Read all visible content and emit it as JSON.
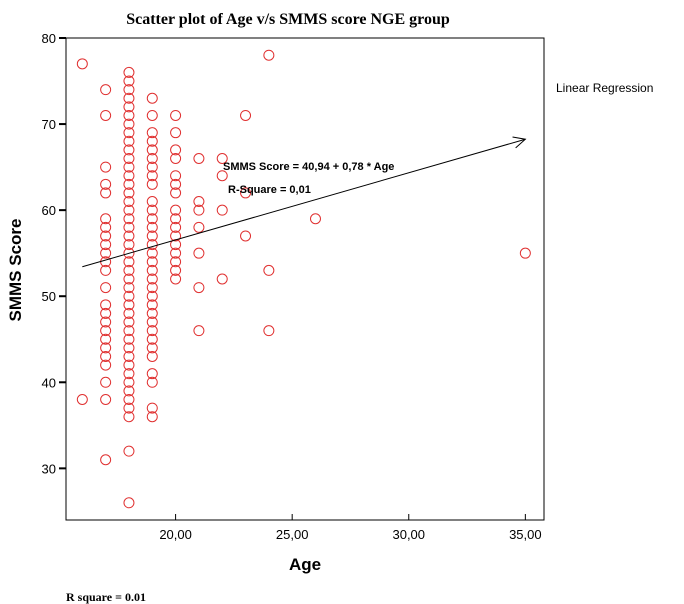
{
  "chart_data": {
    "type": "scatter",
    "title": "Scatter plot of Age v/s SMMS score NGE group",
    "xlabel": "Age",
    "ylabel": "SMMS Score",
    "xlim": [
      15.3,
      35.8
    ],
    "ylim": [
      24,
      80
    ],
    "x_ticks": [
      {
        "value": 20,
        "label": "20,00"
      },
      {
        "value": 25,
        "label": "25,00"
      },
      {
        "value": 30,
        "label": "30,00"
      },
      {
        "value": 35,
        "label": "35,00"
      }
    ],
    "y_ticks": [
      {
        "value": 30,
        "label": "30"
      },
      {
        "value": 40,
        "label": "40"
      },
      {
        "value": 50,
        "label": "50"
      },
      {
        "value": 60,
        "label": "60"
      },
      {
        "value": 70,
        "label": "70"
      },
      {
        "value": 80,
        "label": "80"
      }
    ],
    "grid": false,
    "marker_color": "#e03030",
    "line_color": "#000000",
    "legend_label": "Linear Regression",
    "regression": {
      "label": "Linear Regression",
      "equation": "SMMS Score = 40,94 + 0,78 * Age",
      "r_square": "R-Square = 0,01",
      "intercept": 40.94,
      "slope": 0.78,
      "x_range": [
        16,
        35
      ]
    },
    "points": [
      [
        16,
        77
      ],
      [
        16,
        38
      ],
      [
        17,
        74
      ],
      [
        17,
        71
      ],
      [
        17,
        65
      ],
      [
        17,
        63
      ],
      [
        17,
        62
      ],
      [
        17,
        59
      ],
      [
        17,
        58
      ],
      [
        17,
        57
      ],
      [
        17,
        56
      ],
      [
        17,
        55
      ],
      [
        17,
        54
      ],
      [
        17,
        53
      ],
      [
        17,
        51
      ],
      [
        17,
        49
      ],
      [
        17,
        48
      ],
      [
        17,
        47
      ],
      [
        17,
        46
      ],
      [
        17,
        45
      ],
      [
        17,
        44
      ],
      [
        17,
        43
      ],
      [
        17,
        42
      ],
      [
        17,
        40
      ],
      [
        17,
        38
      ],
      [
        17,
        31
      ],
      [
        18,
        76
      ],
      [
        18,
        75
      ],
      [
        18,
        74
      ],
      [
        18,
        73
      ],
      [
        18,
        72
      ],
      [
        18,
        71
      ],
      [
        18,
        70
      ],
      [
        18,
        69
      ],
      [
        18,
        68
      ],
      [
        18,
        67
      ],
      [
        18,
        66
      ],
      [
        18,
        65
      ],
      [
        18,
        64
      ],
      [
        18,
        63
      ],
      [
        18,
        62
      ],
      [
        18,
        61
      ],
      [
        18,
        60
      ],
      [
        18,
        59
      ],
      [
        18,
        58
      ],
      [
        18,
        57
      ],
      [
        18,
        56
      ],
      [
        18,
        55
      ],
      [
        18,
        54
      ],
      [
        18,
        53
      ],
      [
        18,
        52
      ],
      [
        18,
        51
      ],
      [
        18,
        50
      ],
      [
        18,
        49
      ],
      [
        18,
        48
      ],
      [
        18,
        47
      ],
      [
        18,
        46
      ],
      [
        18,
        45
      ],
      [
        18,
        44
      ],
      [
        18,
        43
      ],
      [
        18,
        42
      ],
      [
        18,
        41
      ],
      [
        18,
        40
      ],
      [
        18,
        39
      ],
      [
        18,
        38
      ],
      [
        18,
        37
      ],
      [
        18,
        36
      ],
      [
        18,
        32
      ],
      [
        18,
        26
      ],
      [
        19,
        73
      ],
      [
        19,
        71
      ],
      [
        19,
        69
      ],
      [
        19,
        68
      ],
      [
        19,
        67
      ],
      [
        19,
        66
      ],
      [
        19,
        65
      ],
      [
        19,
        64
      ],
      [
        19,
        63
      ],
      [
        19,
        61
      ],
      [
        19,
        60
      ],
      [
        19,
        59
      ],
      [
        19,
        58
      ],
      [
        19,
        57
      ],
      [
        19,
        56
      ],
      [
        19,
        55
      ],
      [
        19,
        54
      ],
      [
        19,
        53
      ],
      [
        19,
        52
      ],
      [
        19,
        51
      ],
      [
        19,
        50
      ],
      [
        19,
        49
      ],
      [
        19,
        48
      ],
      [
        19,
        47
      ],
      [
        19,
        46
      ],
      [
        19,
        45
      ],
      [
        19,
        44
      ],
      [
        19,
        43
      ],
      [
        19,
        41
      ],
      [
        19,
        40
      ],
      [
        19,
        37
      ],
      [
        19,
        36
      ],
      [
        20,
        71
      ],
      [
        20,
        69
      ],
      [
        20,
        67
      ],
      [
        20,
        66
      ],
      [
        20,
        64
      ],
      [
        20,
        63
      ],
      [
        20,
        62
      ],
      [
        20,
        60
      ],
      [
        20,
        59
      ],
      [
        20,
        58
      ],
      [
        20,
        57
      ],
      [
        20,
        56
      ],
      [
        20,
        55
      ],
      [
        20,
        54
      ],
      [
        20,
        53
      ],
      [
        20,
        52
      ],
      [
        21,
        66
      ],
      [
        21,
        61
      ],
      [
        21,
        60
      ],
      [
        21,
        58
      ],
      [
        21,
        55
      ],
      [
        21,
        51
      ],
      [
        21,
        46
      ],
      [
        22,
        66
      ],
      [
        22,
        64
      ],
      [
        22,
        60
      ],
      [
        22,
        52
      ],
      [
        23,
        71
      ],
      [
        23,
        62
      ],
      [
        23,
        57
      ],
      [
        24,
        78
      ],
      [
        24,
        53
      ],
      [
        24,
        46
      ],
      [
        26,
        59
      ],
      [
        35,
        55
      ]
    ]
  },
  "footnote": "R square = 0.01"
}
